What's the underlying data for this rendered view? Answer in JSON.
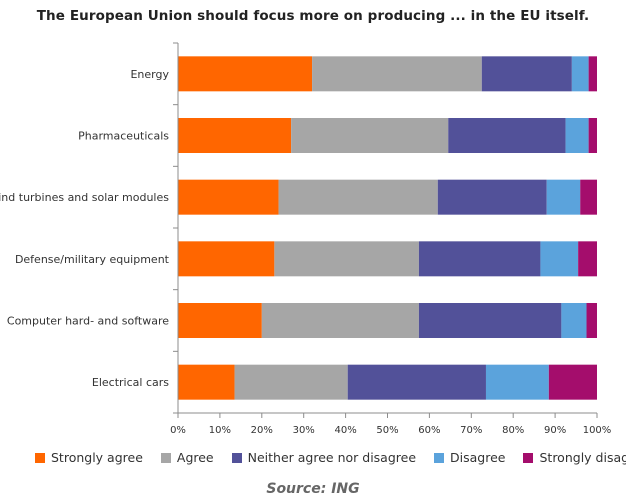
{
  "title": "The European Union should focus more on producing ... in the EU itself.",
  "source": "Source: ING",
  "chart_data": {
    "type": "bar",
    "orientation": "horizontal",
    "stacked": true,
    "categories": [
      "Energy",
      "Pharmaceuticals",
      "Wind turbines and solar modules",
      "Defense/military equipment",
      "Computer hard- and software",
      "Electrical cars"
    ],
    "series": [
      {
        "name": "Strongly agree",
        "color": "#ff6600",
        "values": [
          32,
          27,
          24,
          23,
          20,
          13.5
        ]
      },
      {
        "name": "Agree",
        "color": "#a6a6a6",
        "values": [
          40.5,
          37.5,
          38,
          34.5,
          37.5,
          27
        ]
      },
      {
        "name": "Neither agree nor disagree",
        "color": "#525199",
        "values": [
          21.5,
          28,
          26,
          29,
          34,
          33
        ]
      },
      {
        "name": "Disagree",
        "color": "#5ba3dc",
        "values": [
          4,
          5.5,
          8,
          9,
          6,
          15
        ]
      },
      {
        "name": "Strongly disagree",
        "color": "#a40d6c",
        "values": [
          2,
          2,
          4,
          4.5,
          2.5,
          11.5
        ]
      }
    ],
    "xlim": [
      0,
      100
    ],
    "x_ticks": [
      "0%",
      "10%",
      "20%",
      "30%",
      "40%",
      "50%",
      "60%",
      "70%",
      "80%",
      "90%",
      "100%"
    ],
    "grid": false,
    "legend_position": "bottom"
  }
}
